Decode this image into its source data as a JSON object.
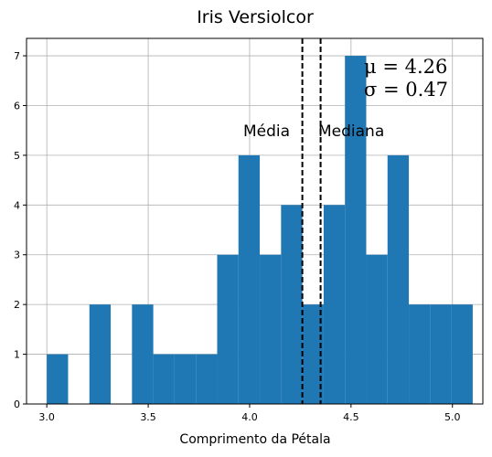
{
  "chart_data": {
    "type": "bar",
    "title": "Iris Versiolcor",
    "xlabel": "Comprimento da Pétala",
    "ylabel": "",
    "xlim": [
      2.9,
      5.15
    ],
    "ylim": [
      0,
      7.35
    ],
    "grid": true,
    "bar_color": "#1f77b4",
    "bins": [
      {
        "x0": 3.0,
        "x1": 3.105,
        "count": 1
      },
      {
        "x0": 3.105,
        "x1": 3.21,
        "count": 0
      },
      {
        "x0": 3.21,
        "x1": 3.315,
        "count": 2
      },
      {
        "x0": 3.315,
        "x1": 3.42,
        "count": 0
      },
      {
        "x0": 3.42,
        "x1": 3.525,
        "count": 2
      },
      {
        "x0": 3.525,
        "x1": 3.63,
        "count": 1
      },
      {
        "x0": 3.63,
        "x1": 3.735,
        "count": 1
      },
      {
        "x0": 3.735,
        "x1": 3.84,
        "count": 1
      },
      {
        "x0": 3.84,
        "x1": 3.945,
        "count": 3
      },
      {
        "x0": 3.945,
        "x1": 4.05,
        "count": 5
      },
      {
        "x0": 4.05,
        "x1": 4.155,
        "count": 3
      },
      {
        "x0": 4.155,
        "x1": 4.26,
        "count": 4
      },
      {
        "x0": 4.26,
        "x1": 4.365,
        "count": 2
      },
      {
        "x0": 4.365,
        "x1": 4.47,
        "count": 4
      },
      {
        "x0": 4.47,
        "x1": 4.575,
        "count": 7
      },
      {
        "x0": 4.575,
        "x1": 4.68,
        "count": 3
      },
      {
        "x0": 4.68,
        "x1": 4.785,
        "count": 5
      },
      {
        "x0": 4.785,
        "x1": 4.89,
        "count": 2
      },
      {
        "x0": 4.89,
        "x1": 4.995,
        "count": 2
      },
      {
        "x0": 4.995,
        "x1": 5.1,
        "count": 2
      }
    ],
    "x_ticks": [
      {
        "value": 3.0,
        "label": "3.0"
      },
      {
        "value": 3.5,
        "label": "3.5"
      },
      {
        "value": 4.0,
        "label": "4.0"
      },
      {
        "value": 4.5,
        "label": "4.5"
      },
      {
        "value": 5.0,
        "label": "5.0"
      }
    ],
    "y_ticks": [
      {
        "value": 0,
        "label": "0"
      },
      {
        "value": 1,
        "label": "1"
      },
      {
        "value": 2,
        "label": "2"
      },
      {
        "value": 3,
        "label": "3"
      },
      {
        "value": 4,
        "label": "4"
      },
      {
        "value": 5,
        "label": "5"
      },
      {
        "value": 6,
        "label": "6"
      },
      {
        "value": 7,
        "label": "7"
      }
    ],
    "reference_lines": [
      {
        "name": "mean",
        "value": 4.26,
        "label": "Média",
        "style": "dashed",
        "color": "#000000"
      },
      {
        "name": "median",
        "value": 4.35,
        "label": "Mediana",
        "style": "dashed",
        "color": "#000000"
      }
    ],
    "stats_text": {
      "mu": "μ = 4.26",
      "sigma": "σ = 0.47"
    }
  }
}
